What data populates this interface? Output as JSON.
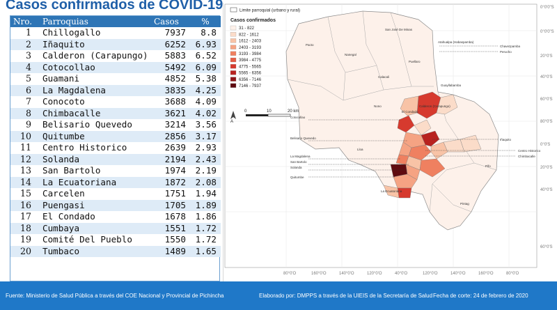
{
  "title": "Casos confirmados de COVID-19",
  "table": {
    "headers": {
      "nro": "Nro.",
      "parroquia": "Parroquias",
      "casos": "Casos",
      "pct": "%"
    },
    "rows": [
      {
        "nro": "1",
        "parroquia": "Chillogallo",
        "casos": "7937",
        "pct": "8.8"
      },
      {
        "nro": "2",
        "parroquia": "Iñaquito",
        "casos": "6252",
        "pct": "6.93"
      },
      {
        "nro": "3",
        "parroquia": "Calderon (Carapungo)",
        "casos": "5883",
        "pct": "6.52"
      },
      {
        "nro": "4",
        "parroquia": "Cotocollao",
        "casos": "5492",
        "pct": "6.09"
      },
      {
        "nro": "5",
        "parroquia": "Guamani",
        "casos": "4852",
        "pct": "5.38"
      },
      {
        "nro": "6",
        "parroquia": "La Magdalena",
        "casos": "3835",
        "pct": "4.25"
      },
      {
        "nro": "7",
        "parroquia": "Conocoto",
        "casos": "3688",
        "pct": "4.09"
      },
      {
        "nro": "8",
        "parroquia": "Chimbacalle",
        "casos": "3621",
        "pct": "4.02"
      },
      {
        "nro": "9",
        "parroquia": "Belisario Quevedo",
        "casos": "3214",
        "pct": "3.56"
      },
      {
        "nro": "10",
        "parroquia": "Quitumbe",
        "casos": "2856",
        "pct": "3.17"
      },
      {
        "nro": "11",
        "parroquia": "Centro Historico",
        "casos": "2639",
        "pct": "2.93"
      },
      {
        "nro": "12",
        "parroquia": "Solanda",
        "casos": "2194",
        "pct": "2.43"
      },
      {
        "nro": "13",
        "parroquia": "San Bartolo",
        "casos": "1974",
        "pct": "2.19"
      },
      {
        "nro": "14",
        "parroquia": "La Ecuatoriana",
        "casos": "1872",
        "pct": "2.08"
      },
      {
        "nro": "15",
        "parroquia": "Carcelen",
        "casos": "1751",
        "pct": "1.94"
      },
      {
        "nro": "16",
        "parroquia": "Puengasi",
        "casos": "1705",
        "pct": "1.89"
      },
      {
        "nro": "17",
        "parroquia": "El Condado",
        "casos": "1678",
        "pct": "1.86"
      },
      {
        "nro": "18",
        "parroquia": "Cumbaya",
        "casos": "1551",
        "pct": "1.72"
      },
      {
        "nro": "19",
        "parroquia": "Comité Del Pueblo",
        "casos": "1550",
        "pct": "1.72"
      },
      {
        "nro": "20",
        "parroquia": "Tumbaco",
        "casos": "1489",
        "pct": "1.65"
      }
    ]
  },
  "map": {
    "boundary_legend": "Limite parroquial (urbano y rural)",
    "legend_title": "Casos confirmados",
    "legend": [
      {
        "label": "31 - 822",
        "color": "#fdf1ea"
      },
      {
        "label": "822 - 1612",
        "color": "#fbdcc9"
      },
      {
        "label": "1612 - 2403",
        "color": "#f8c3a6"
      },
      {
        "label": "2403 - 3193",
        "color": "#f5a383"
      },
      {
        "label": "3193 - 3984",
        "color": "#ef8060"
      },
      {
        "label": "3984 - 4775",
        "color": "#e65d45"
      },
      {
        "label": "4775 - 5565",
        "color": "#d63a2e"
      },
      {
        "label": "5565 - 6356",
        "color": "#b8221f"
      },
      {
        "label": "6356 - 7146",
        "color": "#8f1518"
      },
      {
        "label": "7146 - 7937",
        "color": "#5f0b10"
      }
    ],
    "scale": {
      "start": "0",
      "mid": "10",
      "end": "20 km"
    },
    "lat_labels": [
      "0°0'0\"S",
      "0°0'0\"S",
      "20°0'S",
      "40°0'S",
      "60°0'S",
      "80°0'S",
      "0°0'S",
      "20°0'S",
      "40°0'S",
      "60°0'S"
    ],
    "lon_labels": [
      "80°0'O",
      "160°0'O",
      "140°0'O",
      "120°0'O",
      "40°0'O",
      "120°0'O",
      "140°0'O",
      "160°0'O",
      "80°0'O"
    ],
    "places": {
      "pacto": "Pacto",
      "san_jose": "San José De Minas",
      "atahualpa": "Atahualpa (Habaspamba)",
      "chavezpamba": "Chavezpamba",
      "perucho": "Perucho",
      "nanegal": "Nanegal",
      "puellaro": "Puellaro",
      "calacali": "Calacali",
      "nono": "Nono",
      "guayllabamba": "Guayllabamba",
      "el_condado": "El Condado",
      "calderon": "Calderon (Carapungo)",
      "cotocollao": "Cotocollao",
      "belisario": "Belisario Quevedo",
      "iñaquito": "Iñaquito",
      "centro": "Centro Historico",
      "chimbacalle": "Chimbacalle",
      "magdalena": "La Magdalena",
      "san_bartolo": "San Bartolo",
      "solanda": "Solanda",
      "quitumbe": "Quitumbe",
      "lloa": "Lloa",
      "ecuatoriana": "La Ecuatoriana",
      "pintag": "Pintag",
      "pifo": "Pifo"
    }
  },
  "footer": {
    "source": "Fuente: Ministerio de Salud Pública a través del COE Nacional y Provincial de Pichincha",
    "author": "Elaborado por: DMPPS a través de la UIEIS de la Secretaría de Salud",
    "date": "Fecha de corte: 24 de febrero de 2020"
  }
}
